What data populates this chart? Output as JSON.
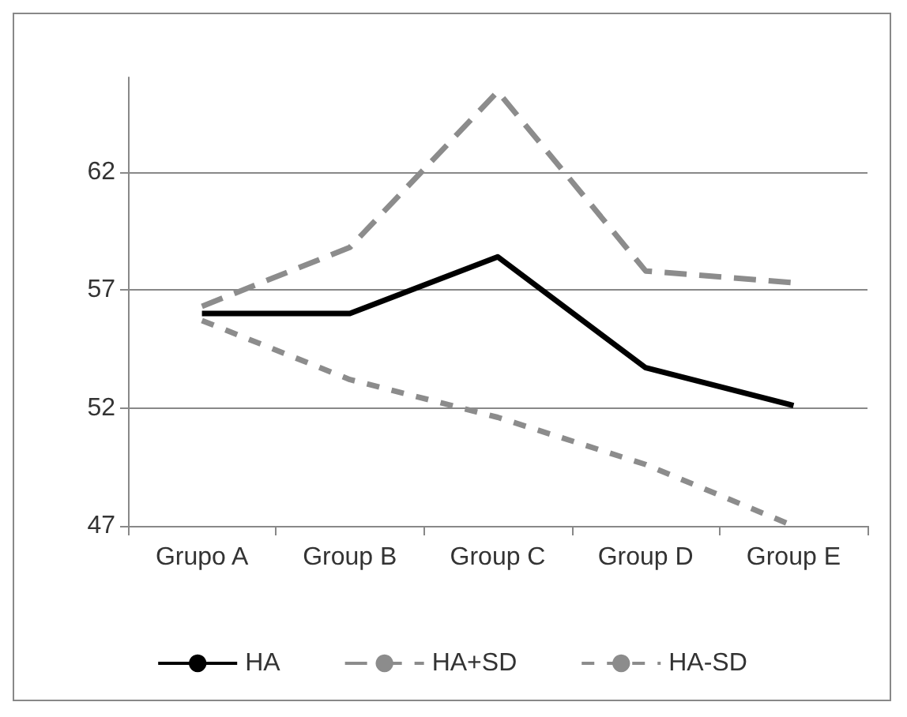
{
  "chart_data": {
    "type": "line",
    "categories": [
      "Grupo A",
      "Group B",
      "Group C",
      "Group D",
      "Group E"
    ],
    "series": [
      {
        "name": "HA",
        "color": "#000000",
        "line_style": "solid",
        "values": [
          56.0,
          56.0,
          58.4,
          53.7,
          52.1
        ]
      },
      {
        "name": "HA+SD",
        "color": "#8c8c8c",
        "line_style": "dashed",
        "values": [
          56.3,
          58.8,
          65.4,
          57.8,
          57.3
        ]
      },
      {
        "name": "HA-SD",
        "color": "#8c8c8c",
        "line_style": "dotted",
        "values": [
          55.7,
          53.2,
          51.6,
          49.6,
          47.0
        ]
      }
    ],
    "ylim": [
      47,
      66
    ],
    "yticks": [
      47,
      52,
      57,
      62
    ],
    "grid": "y",
    "legend": "bottom",
    "marker": "none"
  }
}
